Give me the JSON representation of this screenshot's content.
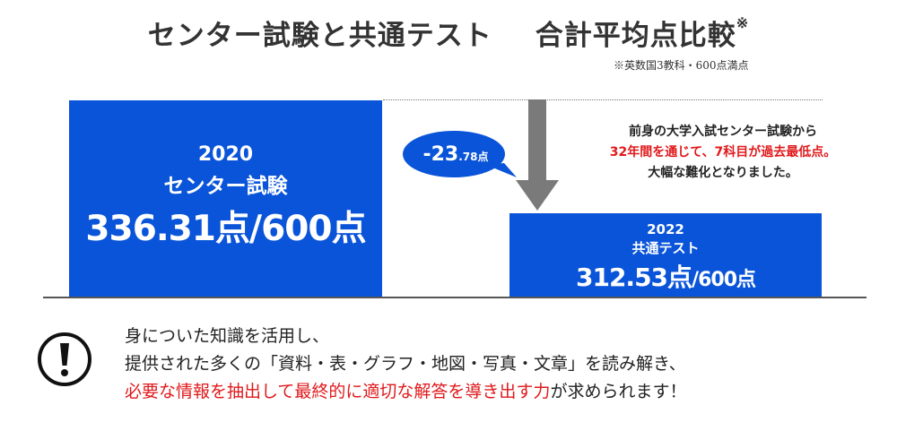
{
  "header": {
    "title_left": "センター試験と共通テスト",
    "title_right": "合計平均点比較",
    "title_mark": "※",
    "note": "※英数国3教科・600点満点"
  },
  "exam2020": {
    "year": "2020",
    "name": "センター試験",
    "score": "336.31点/600点"
  },
  "exam2022": {
    "year": "2022",
    "name": "共通テスト",
    "score_value": "312.53点",
    "score_suffix": "/600点"
  },
  "difference": {
    "value": "-23",
    "decimal": ".78点"
  },
  "description": {
    "line1": "前身の大学入試センター試験から",
    "line2": "32年間を通じて、7科目が過去最低点。",
    "line3": "大幅な難化となりました。"
  },
  "message": {
    "line1": "身についた知識を活用し、",
    "line2": "提供された多くの「資料・表・グラフ・地図・写真・文章」を読み解き、",
    "line3_red": "必要な情報を抽出して最終的に適切な解答を導き出す力",
    "line3_rest": "が求められます！"
  },
  "icons": {
    "alert": "exclamation-circle-icon",
    "arrow": "down-arrow-icon"
  },
  "colors": {
    "box_blue": "#0a54d9",
    "accent_red": "#e0191b",
    "arrow_gray": "#7a7a7a"
  }
}
